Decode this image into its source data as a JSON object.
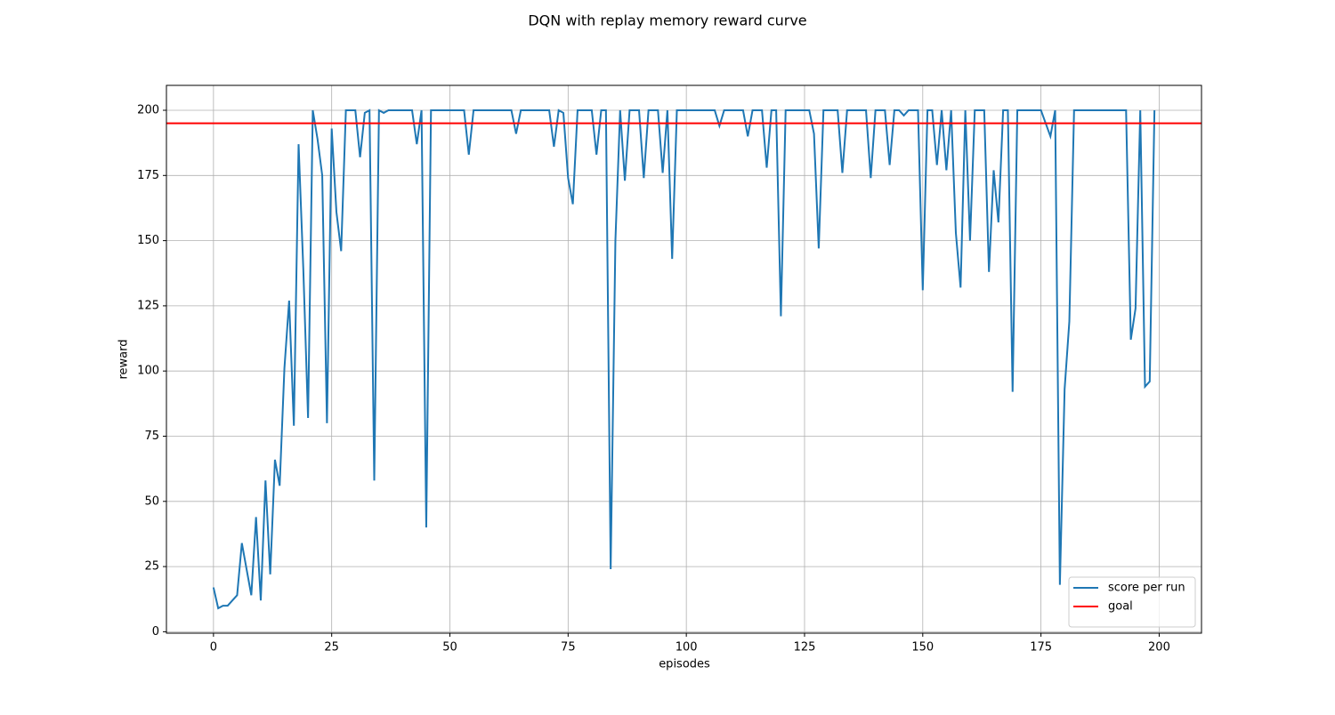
{
  "chart_data": {
    "type": "line",
    "title": "DQN with replay memory reward curve",
    "x_label": "episodes",
    "y_label": "reward",
    "x": [
      0,
      1,
      2,
      3,
      4,
      5,
      6,
      7,
      8,
      9,
      10,
      11,
      12,
      13,
      14,
      15,
      16,
      17,
      18,
      19,
      20,
      21,
      22,
      23,
      24,
      25,
      26,
      27,
      28,
      29,
      30,
      31,
      32,
      33,
      34,
      35,
      36,
      37,
      38,
      39,
      40,
      41,
      42,
      43,
      44,
      45,
      46,
      47,
      48,
      49,
      50,
      51,
      52,
      53,
      54,
      55,
      56,
      57,
      58,
      59,
      60,
      61,
      62,
      63,
      64,
      65,
      66,
      67,
      68,
      69,
      70,
      71,
      72,
      73,
      74,
      75,
      76,
      77,
      78,
      79,
      80,
      81,
      82,
      83,
      84,
      85,
      86,
      87,
      88,
      89,
      90,
      91,
      92,
      93,
      94,
      95,
      96,
      97,
      98,
      99,
      100,
      101,
      102,
      103,
      104,
      105,
      106,
      107,
      108,
      109,
      110,
      111,
      112,
      113,
      114,
      115,
      116,
      117,
      118,
      119,
      120,
      121,
      122,
      123,
      124,
      125,
      126,
      127,
      128,
      129,
      130,
      131,
      132,
      133,
      134,
      135,
      136,
      137,
      138,
      139,
      140,
      141,
      142,
      143,
      144,
      145,
      146,
      147,
      148,
      149,
      150,
      151,
      152,
      153,
      154,
      155,
      156,
      157,
      158,
      159,
      160,
      161,
      162,
      163,
      164,
      165,
      166,
      167,
      168,
      169,
      170,
      171,
      172,
      173,
      174,
      175,
      176,
      177,
      178,
      179,
      180,
      181,
      182,
      183,
      184,
      185,
      186,
      187,
      188,
      189,
      190,
      191,
      192,
      193,
      194,
      195,
      196,
      197,
      198,
      199
    ],
    "series": [
      {
        "name": "score per run",
        "color": "#1f77b4",
        "values": [
          17,
          9,
          10,
          10,
          12,
          14,
          34,
          24,
          14,
          44,
          12,
          58,
          22,
          66,
          56,
          101,
          127,
          79,
          187,
          139,
          82,
          200,
          189,
          175,
          80,
          193,
          161,
          146,
          200,
          200,
          200,
          182,
          199,
          200,
          58,
          200,
          199,
          200,
          200,
          200,
          200,
          200,
          200,
          187,
          200,
          40,
          200,
          200,
          200,
          200,
          200,
          200,
          200,
          200,
          183,
          200,
          200,
          200,
          200,
          200,
          200,
          200,
          200,
          200,
          191,
          200,
          200,
          200,
          200,
          200,
          200,
          200,
          186,
          200,
          199,
          174,
          164,
          200,
          200,
          200,
          200,
          183,
          200,
          200,
          24,
          150,
          200,
          173,
          200,
          200,
          200,
          174,
          200,
          200,
          200,
          176,
          200,
          143,
          200,
          200,
          200,
          200,
          200,
          200,
          200,
          200,
          200,
          194,
          200,
          200,
          200,
          200,
          200,
          190,
          200,
          200,
          200,
          178,
          200,
          200,
          121,
          200,
          200,
          200,
          200,
          200,
          200,
          191,
          147,
          200,
          200,
          200,
          200,
          176,
          200,
          200,
          200,
          200,
          200,
          174,
          200,
          200,
          200,
          179,
          200,
          200,
          198,
          200,
          200,
          200,
          131,
          200,
          200,
          179,
          200,
          177,
          200,
          153,
          132,
          200,
          150,
          200,
          200,
          200,
          138,
          177,
          157,
          200,
          200,
          92,
          200,
          200,
          200,
          200,
          200,
          200,
          195,
          190,
          200,
          18,
          93,
          119,
          200,
          200,
          200,
          200,
          200,
          200,
          200,
          200,
          200,
          200,
          200,
          200,
          112,
          124,
          200,
          94,
          96,
          200
        ]
      }
    ],
    "hlines": [
      {
        "name": "goal",
        "color": "#ff0000",
        "value": 195
      }
    ],
    "xlim": [
      -9.95,
      208.95
    ],
    "ylim": [
      -0.55,
      209.55
    ],
    "xticks": [
      0,
      25,
      50,
      75,
      100,
      125,
      150,
      175,
      200
    ],
    "yticks": [
      0,
      25,
      50,
      75,
      100,
      125,
      150,
      175,
      200
    ],
    "grid": true,
    "legend": "lower right"
  }
}
